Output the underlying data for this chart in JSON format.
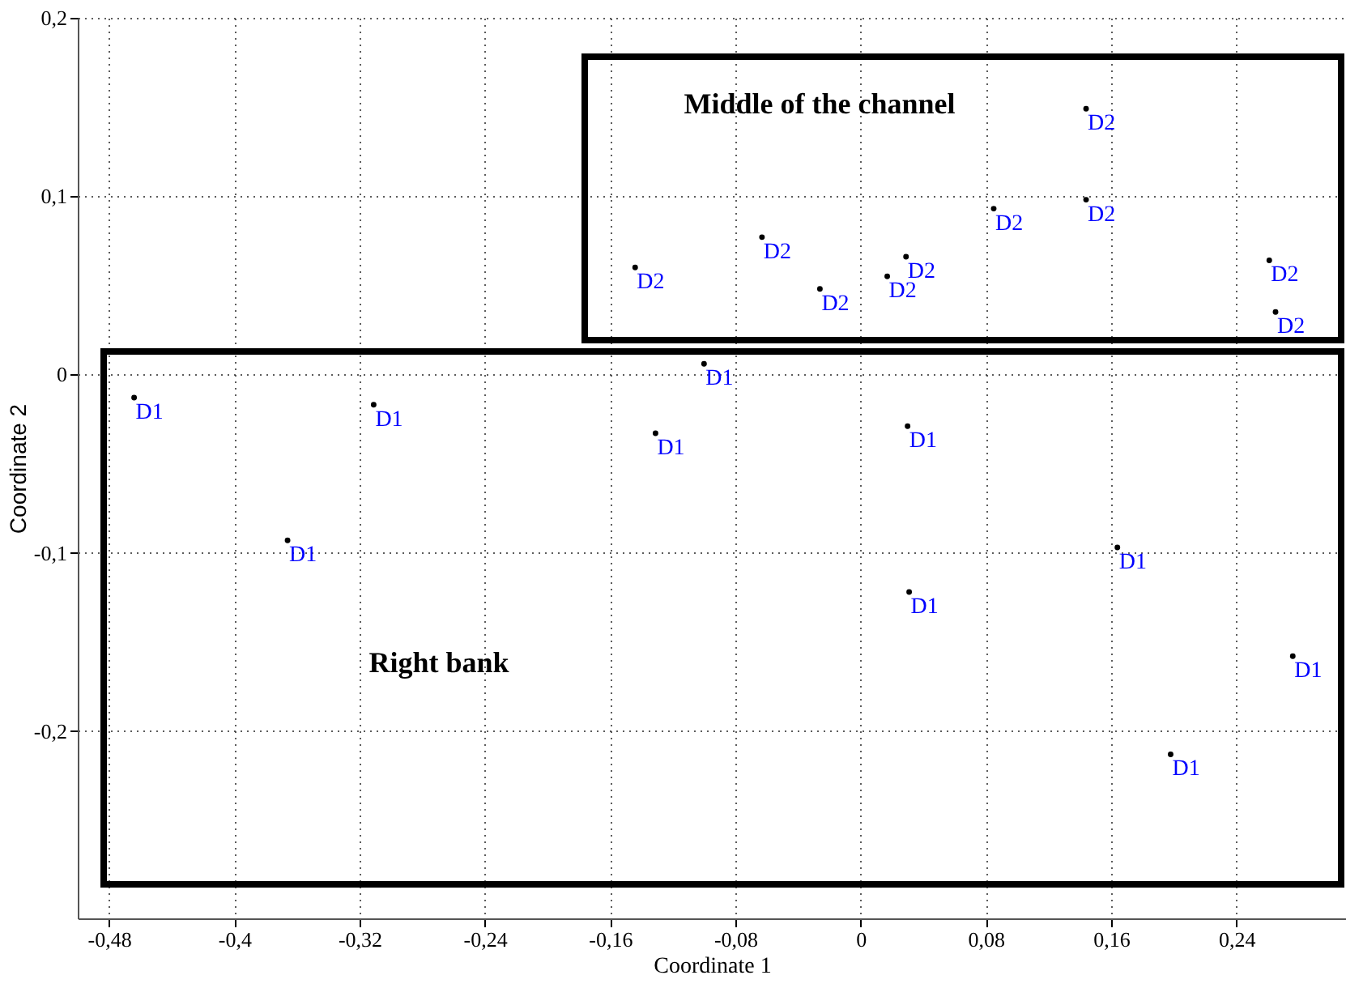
{
  "chart_data": {
    "type": "scatter",
    "xlabel": "Coordinate 1",
    "ylabel": "Coordinate 2",
    "xlim": [
      -0.5,
      0.31
    ],
    "ylim": [
      -0.305,
      0.2
    ],
    "xticks": [
      {
        "value": -0.48,
        "label": "-0,48"
      },
      {
        "value": -0.4,
        "label": "-0,4"
      },
      {
        "value": -0.32,
        "label": "-0,32"
      },
      {
        "value": -0.24,
        "label": "-0,24"
      },
      {
        "value": -0.16,
        "label": "-0,16"
      },
      {
        "value": -0.08,
        "label": "-0,08"
      },
      0,
      {
        "value": 0.08,
        "label": "0,08"
      },
      {
        "value": 0.16,
        "label": "0,16"
      },
      {
        "value": 0.24,
        "label": "0,24"
      }
    ],
    "yticks": [
      {
        "value": -0.2,
        "label": "-0,2"
      },
      {
        "value": -0.1,
        "label": "-0,1"
      },
      0,
      {
        "value": 0.1,
        "label": "0,1"
      },
      {
        "value": 0.2,
        "label": "0,2"
      }
    ],
    "grid": true,
    "marker": "circle",
    "annotations": [
      "Right bank",
      "Middle of the channel"
    ],
    "series": [
      {
        "name": "D1",
        "color": "#000000",
        "x": [
          -0.464,
          -0.311,
          -0.366,
          -0.131,
          -0.1,
          0.03,
          0.031,
          0.164,
          0.276,
          0.198
        ],
        "values": [
          -0.013,
          -0.017,
          -0.093,
          -0.033,
          0.006,
          -0.029,
          -0.122,
          -0.097,
          -0.158,
          -0.213
        ]
      },
      {
        "name": "D2",
        "color": "#000000",
        "x": [
          -0.144,
          -0.063,
          -0.026,
          0.017,
          0.029,
          0.085,
          0.144,
          0.144,
          0.261,
          0.265
        ],
        "values": [
          0.06,
          0.077,
          0.048,
          0.055,
          0.066,
          0.093,
          0.149,
          0.098,
          0.064,
          0.035
        ]
      }
    ]
  }
}
